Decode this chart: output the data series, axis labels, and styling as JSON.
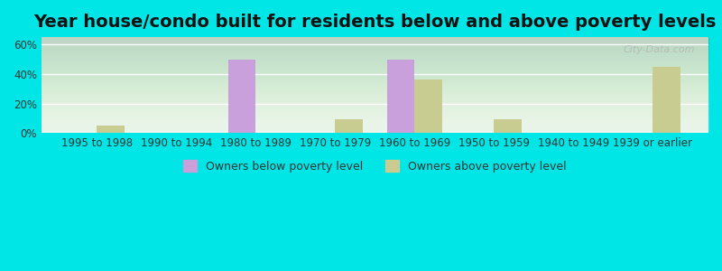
{
  "title": "Year house/condo built for residents below and above poverty levels",
  "categories": [
    "1995 to 1998",
    "1990 to 1994",
    "1980 to 1989",
    "1970 to 1979",
    "1960 to 1969",
    "1950 to 1959",
    "1940 to 1949",
    "1939 or earlier"
  ],
  "below_poverty": [
    0,
    0,
    50,
    0,
    50,
    0,
    0,
    0
  ],
  "above_poverty": [
    5,
    0,
    0,
    9,
    36,
    9,
    0,
    45
  ],
  "below_color": "#c9a0dc",
  "above_color": "#c8cc90",
  "background_outer": "#00e5e5",
  "background_inner_top": "#e8f5e8",
  "background_inner_bottom": "#f0f8f0",
  "ylim": [
    0,
    65
  ],
  "yticks": [
    0,
    20,
    40,
    60
  ],
  "ytick_labels": [
    "0%",
    "20%",
    "40%",
    "60%"
  ],
  "bar_width": 0.35,
  "legend_below_label": "Owners below poverty level",
  "legend_above_label": "Owners above poverty level",
  "title_fontsize": 14,
  "tick_fontsize": 8.5,
  "legend_fontsize": 9,
  "watermark": "City-Data.com"
}
